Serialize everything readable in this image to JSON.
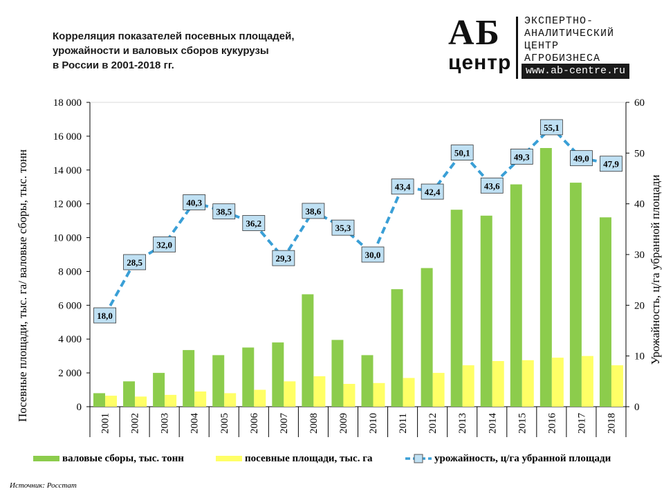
{
  "header": {
    "title_lines": [
      "Корреляция показателей посевных площадей,",
      "урожайности и валовых сборов кукурузы",
      "в России в 2001-2018 гг."
    ]
  },
  "logo": {
    "mark_top": "АБ",
    "mark_bottom": "центр",
    "lines": [
      "ЭКСПЕРТНО-",
      "АНАЛИТИЧЕСКИЙ",
      "ЦЕНТР",
      "АГРОБИЗНЕСА"
    ],
    "url": "www.ab-centre.ru"
  },
  "source": "Источник: Росстат",
  "colors": {
    "gross": "#8ccc4c",
    "area": "#ffff66",
    "yield_line": "#3a9fd6",
    "marker_fill": "#bfe0f3",
    "grid": "#bfbfbf"
  },
  "chart_data": {
    "type": "bar",
    "categories": [
      "2001",
      "2002",
      "2003",
      "2004",
      "2005",
      "2006",
      "2007",
      "2008",
      "2009",
      "2010",
      "2011",
      "2012",
      "2013",
      "2014",
      "2015",
      "2016",
      "2017",
      "2018"
    ],
    "series": [
      {
        "name": "валовые сборы, тыс. тонн",
        "type": "bar",
        "axis": "left",
        "values": [
          800,
          1500,
          2000,
          3350,
          3050,
          3500,
          3800,
          6650,
          3950,
          3050,
          6950,
          8200,
          11650,
          11300,
          13150,
          15300,
          13250,
          11200
        ]
      },
      {
        "name": "посевные площади, тыс. га",
        "type": "bar",
        "axis": "left",
        "values": [
          650,
          600,
          700,
          900,
          800,
          1000,
          1500,
          1800,
          1350,
          1400,
          1700,
          2000,
          2450,
          2700,
          2750,
          2900,
          3000,
          2450
        ]
      },
      {
        "name": "урожайность, ц/га убранной площади",
        "type": "line",
        "axis": "right",
        "values": [
          18.0,
          28.5,
          32.0,
          40.3,
          38.5,
          36.2,
          29.3,
          38.6,
          35.3,
          30.0,
          43.4,
          42.4,
          50.1,
          43.6,
          49.3,
          55.1,
          49.0,
          47.9
        ],
        "labels": [
          "18,0",
          "28,5",
          "32,0",
          "40,3",
          "38,5",
          "36,2",
          "29,3",
          "38,6",
          "35,3",
          "30,0",
          "43,4",
          "42,4",
          "50,1",
          "43,6",
          "49,3",
          "55,1",
          "49,0",
          "47,9"
        ]
      }
    ],
    "ylabel": "Посевные площади, тыс. га/ валовые сборы, тыс. тонн",
    "ylabel_right": "Урожайность, ц/га убранной площади",
    "ylim": [
      0,
      18000
    ],
    "ylim_right": [
      0,
      60
    ],
    "yticks": [
      0,
      2000,
      4000,
      6000,
      8000,
      10000,
      12000,
      14000,
      16000,
      18000
    ],
    "ytick_labels": [
      "0",
      "2 000",
      "4 000",
      "6 000",
      "8 000",
      "10 000",
      "12 000",
      "14 000",
      "16 000",
      "18 000"
    ],
    "yticks_right": [
      0,
      10,
      20,
      30,
      40,
      50,
      60
    ],
    "ytick_labels_right": [
      "0",
      "10",
      "20",
      "30",
      "40",
      "50",
      "60"
    ],
    "grid": false,
    "legend": "bottom"
  }
}
